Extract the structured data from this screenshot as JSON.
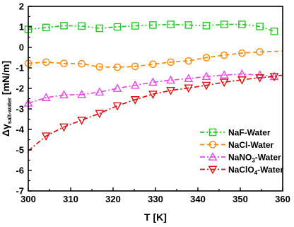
{
  "chart_data": {
    "type": "line",
    "xlabel": "T [K]",
    "ylabel": {
      "main": "Δγ",
      "sub": "salt-water",
      "unit": " [mN/m]"
    },
    "xlim": [
      300,
      360
    ],
    "ylim": [
      -7,
      2
    ],
    "xticks": [
      "300",
      "310",
      "320",
      "330",
      "340",
      "350",
      "360"
    ],
    "yticks": [
      "2",
      "1",
      "0",
      "-1",
      "-2",
      "-3",
      "-4",
      "-5",
      "-6",
      "-7"
    ],
    "grid": false,
    "legend_position": "bottom-right",
    "series": [
      {
        "name": "NaF-Water",
        "name_parts": {
          "pre": "NaF-Water",
          "sub": "",
          "post": ""
        },
        "color": "#22cc22",
        "marker": "square",
        "line_style": "dash-dot-dot",
        "x": [
          300,
          304.2,
          308.4,
          312.6,
          316.8,
          321,
          325.2,
          329.4,
          333.6,
          337.8,
          342,
          346.2,
          350.4,
          354.6,
          358
        ],
        "y": [
          0.88,
          0.97,
          1.06,
          1.04,
          0.93,
          1.0,
          1.05,
          1.09,
          1.12,
          1.09,
          1.06,
          1.12,
          1.12,
          1.02,
          0.78
        ],
        "marker_x": [
          300,
          304.2,
          308.4,
          312.6,
          316.8,
          321,
          325.2,
          329.4,
          333.6,
          337.8,
          342,
          346.2,
          350.4,
          354.6,
          358
        ],
        "marker_y": [
          0.88,
          0.97,
          1.06,
          1.04,
          0.93,
          1.0,
          1.05,
          1.09,
          1.12,
          1.09,
          1.06,
          1.12,
          1.12,
          1.02,
          0.78
        ]
      },
      {
        "name": "NaCl-Water",
        "name_parts": {
          "pre": "NaCl-Water",
          "sub": "",
          "post": ""
        },
        "color": "#ff8800",
        "marker": "circle",
        "line_style": "dash",
        "x": [
          300,
          304.2,
          308.4,
          312.6,
          316.8,
          321,
          325.2,
          329.4,
          333.6,
          337.8,
          342,
          346.2,
          350.4,
          354.6,
          360
        ],
        "y": [
          -0.78,
          -0.72,
          -0.78,
          -0.8,
          -0.95,
          -0.97,
          -0.93,
          -0.82,
          -0.72,
          -0.66,
          -0.5,
          -0.38,
          -0.28,
          -0.22,
          -0.18
        ],
        "marker_x": [
          300,
          304.2,
          308.4,
          312.6,
          316.8,
          321,
          325.2,
          329.4,
          333.6,
          337.8,
          342,
          346.2,
          350.4,
          354.6
        ],
        "marker_y": [
          -0.78,
          -0.72,
          -0.78,
          -0.8,
          -0.95,
          -0.97,
          -0.93,
          -0.82,
          -0.72,
          -0.66,
          -0.5,
          -0.38,
          -0.28,
          -0.22
        ]
      },
      {
        "name": "NaNO3-Water",
        "name_parts": {
          "pre": "NaNO",
          "sub": "3",
          "post": "-Water"
        },
        "color": "#ee44ee",
        "marker": "triangle-up",
        "line_style": "dash-dot",
        "x": [
          300,
          304.2,
          308.4,
          312.6,
          316.8,
          321,
          325.2,
          329.4,
          333.6,
          337.8,
          342,
          346.2,
          350.4,
          354.6,
          358
        ],
        "y": [
          -2.72,
          -2.45,
          -2.32,
          -2.3,
          -2.18,
          -2.0,
          -1.85,
          -1.7,
          -1.6,
          -1.52,
          -1.42,
          -1.35,
          -1.3,
          -1.35,
          -1.42
        ],
        "marker_x": [
          300,
          304.2,
          308.4,
          312.6,
          316.8,
          321,
          325.2,
          329.4,
          333.6,
          337.8,
          342,
          346.2,
          350.4,
          354.6,
          358
        ],
        "marker_y": [
          -2.72,
          -2.45,
          -2.32,
          -2.3,
          -2.18,
          -2.0,
          -1.85,
          -1.7,
          -1.6,
          -1.52,
          -1.42,
          -1.35,
          -1.3,
          -1.35,
          -1.42
        ]
      },
      {
        "name": "NaClO4-Water",
        "name_parts": {
          "pre": "NaClO",
          "sub": "4",
          "post": "-Water"
        },
        "color": "#dd1111",
        "marker": "triangle-down",
        "line_style": "dash-dot",
        "x": [
          300,
          304.2,
          308.4,
          312.6,
          316.8,
          321,
          325.2,
          329.4,
          333.6,
          337.8,
          342,
          346.2,
          350.4,
          354.6,
          358,
          360
        ],
        "y": [
          -5.05,
          -4.32,
          -3.88,
          -3.55,
          -3.22,
          -2.85,
          -2.55,
          -2.28,
          -2.1,
          -1.98,
          -1.85,
          -1.7,
          -1.58,
          -1.48,
          -1.42,
          -1.35
        ],
        "marker_x": [
          304.2,
          308.4,
          312.6,
          316.8,
          321,
          325.2,
          329.4,
          333.6,
          337.8,
          342,
          346.2,
          350.4,
          354.6,
          358
        ],
        "marker_y": [
          -4.32,
          -3.88,
          -3.55,
          -3.22,
          -2.85,
          -2.55,
          -2.28,
          -2.1,
          -1.98,
          -1.85,
          -1.7,
          -1.58,
          -1.48,
          -1.42
        ]
      }
    ]
  }
}
